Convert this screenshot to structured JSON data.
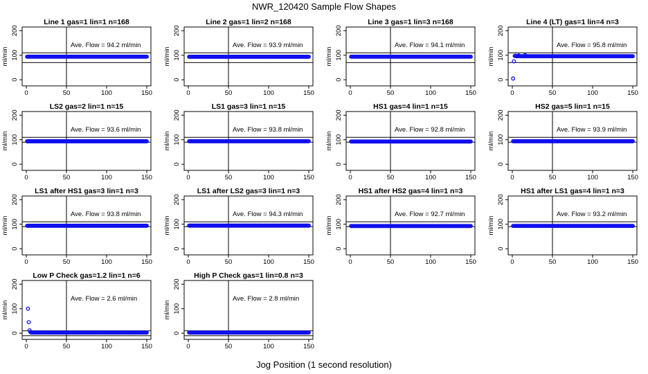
{
  "figure": {
    "title": "NWR_120420  Sample Flow Shapes",
    "xlabel": "Jog Position (1 second resolution)"
  },
  "chart_data": [
    {
      "type": "scatter",
      "title": "Line 1 gas=1 lin=1 n=168",
      "annotation": "Ave. Flow = 94.2  ml/min",
      "ylabel": "ml/min",
      "xlim": [
        0,
        150
      ],
      "ylim": [
        -25,
        215
      ],
      "xticks": [
        0,
        50,
        100,
        150
      ],
      "yticks": [
        0,
        100,
        200
      ],
      "hlines": [
        70,
        110
      ],
      "vline": 50,
      "marker_color": "#1010ee",
      "series": [
        {
          "x_range": [
            1,
            150
          ],
          "y": 94.2,
          "outliers": []
        }
      ]
    },
    {
      "type": "scatter",
      "title": "Line 2 gas=1 lin=2 n=168",
      "annotation": "Ave. Flow = 93.9  ml/min",
      "ylabel": "ml/min",
      "xlim": [
        0,
        150
      ],
      "ylim": [
        -25,
        215
      ],
      "xticks": [
        0,
        50,
        100,
        150
      ],
      "yticks": [
        0,
        100,
        200
      ],
      "hlines": [
        70,
        110
      ],
      "vline": 50,
      "marker_color": "#1010ee",
      "series": [
        {
          "x_range": [
            1,
            150
          ],
          "y": 93.9,
          "outliers": []
        }
      ]
    },
    {
      "type": "scatter",
      "title": "Line 3 gas=1 lin=3 n=168",
      "annotation": "Ave. Flow = 94.1  ml/min",
      "ylabel": "ml/min",
      "xlim": [
        0,
        150
      ],
      "ylim": [
        -25,
        215
      ],
      "xticks": [
        0,
        50,
        100,
        150
      ],
      "yticks": [
        0,
        100,
        200
      ],
      "hlines": [
        70,
        110
      ],
      "vline": 50,
      "marker_color": "#1010ee",
      "series": [
        {
          "x_range": [
            1,
            150
          ],
          "y": 94.1,
          "outliers": []
        }
      ]
    },
    {
      "type": "scatter",
      "title": "Line 4 (LT) gas=1 lin=4 n=3",
      "annotation": "Ave. Flow = 95.8  ml/min",
      "ylabel": "ml/min",
      "xlim": [
        0,
        150
      ],
      "ylim": [
        -25,
        215
      ],
      "xticks": [
        0,
        50,
        100,
        150
      ],
      "yticks": [
        0,
        100,
        200
      ],
      "hlines": [
        70,
        110
      ],
      "vline": 50,
      "marker_color": "#1010ee",
      "series": [
        {
          "x_range": [
            5,
            150
          ],
          "y": 95.8,
          "outliers": [
            [
              1,
              5
            ],
            [
              2,
              75
            ],
            [
              3,
              97
            ],
            [
              4,
              98
            ],
            [
              8,
              99
            ],
            [
              16,
              100
            ]
          ]
        }
      ]
    },
    {
      "type": "scatter",
      "title": "LS2 gas=2 lin=1 n=15",
      "annotation": "Ave. Flow = 93.6  ml/min",
      "ylabel": "ml/min",
      "xlim": [
        0,
        150
      ],
      "ylim": [
        -25,
        215
      ],
      "xticks": [
        0,
        50,
        100,
        150
      ],
      "yticks": [
        0,
        100,
        200
      ],
      "hlines": [
        90,
        110
      ],
      "vline": 50,
      "marker_color": "#1010ee",
      "series": [
        {
          "x_range": [
            1,
            150
          ],
          "y": 93.6,
          "outliers": []
        }
      ]
    },
    {
      "type": "scatter",
      "title": "LS1 gas=3 lin=1 n=15",
      "annotation": "Ave. Flow = 93.8  ml/min",
      "ylabel": "ml/min",
      "xlim": [
        0,
        150
      ],
      "ylim": [
        -25,
        215
      ],
      "xticks": [
        0,
        50,
        100,
        150
      ],
      "yticks": [
        0,
        100,
        200
      ],
      "hlines": [
        90,
        110
      ],
      "vline": 50,
      "marker_color": "#1010ee",
      "series": [
        {
          "x_range": [
            1,
            150
          ],
          "y": 93.8,
          "outliers": []
        }
      ]
    },
    {
      "type": "scatter",
      "title": "HS1 gas=4 lin=1 n=15",
      "annotation": "Ave. Flow = 92.8  ml/min",
      "ylabel": "ml/min",
      "xlim": [
        0,
        150
      ],
      "ylim": [
        -25,
        215
      ],
      "xticks": [
        0,
        50,
        100,
        150
      ],
      "yticks": [
        0,
        100,
        200
      ],
      "hlines": [
        90,
        110
      ],
      "vline": 50,
      "marker_color": "#1010ee",
      "series": [
        {
          "x_range": [
            1,
            150
          ],
          "y": 92.8,
          "outliers": []
        }
      ]
    },
    {
      "type": "scatter",
      "title": "HS2 gas=5 lin=1 n=15",
      "annotation": "Ave. Flow = 93.9  ml/min",
      "ylabel": "ml/min",
      "xlim": [
        0,
        150
      ],
      "ylim": [
        -25,
        215
      ],
      "xticks": [
        0,
        50,
        100,
        150
      ],
      "yticks": [
        0,
        100,
        200
      ],
      "hlines": [
        90,
        110
      ],
      "vline": 50,
      "marker_color": "#1010ee",
      "series": [
        {
          "x_range": [
            1,
            150
          ],
          "y": 93.9,
          "outliers": []
        }
      ]
    },
    {
      "type": "scatter",
      "title": "LS1 after HS1 gas=3 lin=1 n=3",
      "annotation": "Ave. Flow = 93.8  ml/min",
      "ylabel": "ml/min",
      "xlim": [
        0,
        150
      ],
      "ylim": [
        -25,
        215
      ],
      "xticks": [
        0,
        50,
        100,
        150
      ],
      "yticks": [
        0,
        100,
        200
      ],
      "hlines": [
        90,
        110
      ],
      "vline": 50,
      "marker_color": "#1010ee",
      "series": [
        {
          "x_range": [
            1,
            150
          ],
          "y": 93.8,
          "outliers": []
        }
      ]
    },
    {
      "type": "scatter",
      "title": "LS1 after LS2 gas=3 lin=1 n=3",
      "annotation": "Ave. Flow = 94.3  ml/min",
      "ylabel": "ml/min",
      "xlim": [
        0,
        150
      ],
      "ylim": [
        -25,
        215
      ],
      "xticks": [
        0,
        50,
        100,
        150
      ],
      "yticks": [
        0,
        100,
        200
      ],
      "hlines": [
        90,
        110
      ],
      "vline": 50,
      "marker_color": "#1010ee",
      "series": [
        {
          "x_range": [
            1,
            150
          ],
          "y": 94.3,
          "outliers": []
        }
      ]
    },
    {
      "type": "scatter",
      "title": "HS1 after HS2 gas=4 lin=1 n=3",
      "annotation": "Ave. Flow = 92.7  ml/min",
      "ylabel": "ml/min",
      "xlim": [
        0,
        150
      ],
      "ylim": [
        -25,
        215
      ],
      "xticks": [
        0,
        50,
        100,
        150
      ],
      "yticks": [
        0,
        100,
        200
      ],
      "hlines": [
        90,
        110
      ],
      "vline": 50,
      "marker_color": "#1010ee",
      "series": [
        {
          "x_range": [
            1,
            150
          ],
          "y": 92.7,
          "outliers": []
        }
      ]
    },
    {
      "type": "scatter",
      "title": "HS1 after LS1 gas=4 lin=1 n=3",
      "annotation": "Ave. Flow = 93.2  ml/min",
      "ylabel": "ml/min",
      "xlim": [
        0,
        150
      ],
      "ylim": [
        -25,
        215
      ],
      "xticks": [
        0,
        50,
        100,
        150
      ],
      "yticks": [
        0,
        100,
        200
      ],
      "hlines": [
        90,
        110
      ],
      "vline": 50,
      "marker_color": "#1010ee",
      "series": [
        {
          "x_range": [
            1,
            150
          ],
          "y": 93.2,
          "outliers": []
        }
      ]
    },
    {
      "type": "scatter",
      "title": "Low P Check gas=1.2 lin=1 n=6",
      "annotation": "Ave. Flow = 2.6  ml/min",
      "ylabel": "ml/min",
      "xlim": [
        0,
        150
      ],
      "ylim": [
        -25,
        215
      ],
      "xticks": [
        0,
        50,
        100,
        150
      ],
      "yticks": [
        0,
        100,
        200
      ],
      "hlines": [
        -10,
        10
      ],
      "vline": 50,
      "marker_color": "#1010ee",
      "series": [
        {
          "x_range": [
            6,
            150
          ],
          "y": 2.6,
          "outliers": [
            [
              2,
              100
            ],
            [
              3,
              45
            ],
            [
              4,
              12
            ],
            [
              5,
              5
            ]
          ]
        }
      ]
    },
    {
      "type": "scatter",
      "title": "High P Check gas=1 lin=0.8 n=3",
      "annotation": "Ave. Flow = 2.8  ml/min",
      "ylabel": "ml/min",
      "xlim": [
        0,
        150
      ],
      "ylim": [
        -25,
        215
      ],
      "xticks": [
        0,
        50,
        100,
        150
      ],
      "yticks": [
        0,
        100,
        200
      ],
      "hlines": [
        -10,
        10
      ],
      "vline": 50,
      "marker_color": "#1010ee",
      "series": [
        {
          "x_range": [
            1,
            150
          ],
          "y": 2.8,
          "outliers": []
        }
      ]
    }
  ]
}
